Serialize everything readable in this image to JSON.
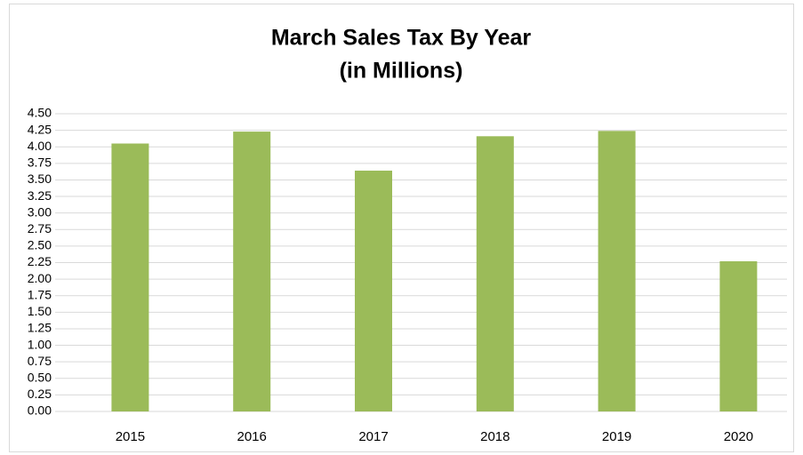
{
  "chart_data": {
    "type": "bar",
    "title": "March Sales Tax By Year",
    "subtitle": "(in Millions)",
    "categories": [
      "2015",
      "2016",
      "2017",
      "2018",
      "2019",
      "2020"
    ],
    "values": [
      4.05,
      4.23,
      3.64,
      4.16,
      4.24,
      2.27
    ],
    "color": "#9bbb59",
    "ylim": [
      0,
      4.5
    ],
    "yticks": [
      {
        "value": 0,
        "label": "0.00"
      },
      {
        "value": 0.25,
        "label": "0.25"
      },
      {
        "value": 0.5,
        "label": "0.50"
      },
      {
        "value": 0.75,
        "label": "0.75"
      },
      {
        "value": 1,
        "label": "1.00"
      },
      {
        "value": 1.25,
        "label": "1.25"
      },
      {
        "value": 1.5,
        "label": "1.50"
      },
      {
        "value": 1.75,
        "label": "1.75"
      },
      {
        "value": 2,
        "label": "2.00"
      },
      {
        "value": 2.25,
        "label": "2.25"
      },
      {
        "value": 2.5,
        "label": "2.50"
      },
      {
        "value": 2.75,
        "label": "2.75"
      },
      {
        "value": 3,
        "label": "3.00"
      },
      {
        "value": 3.25,
        "label": "3.25"
      },
      {
        "value": 3.5,
        "label": "3.50"
      },
      {
        "value": 3.75,
        "label": "3.75"
      },
      {
        "value": 4,
        "label": "4.00"
      },
      {
        "value": 4.25,
        "label": "4.25"
      },
      {
        "value": 4.5,
        "label": "4.50"
      }
    ],
    "grid": true
  }
}
